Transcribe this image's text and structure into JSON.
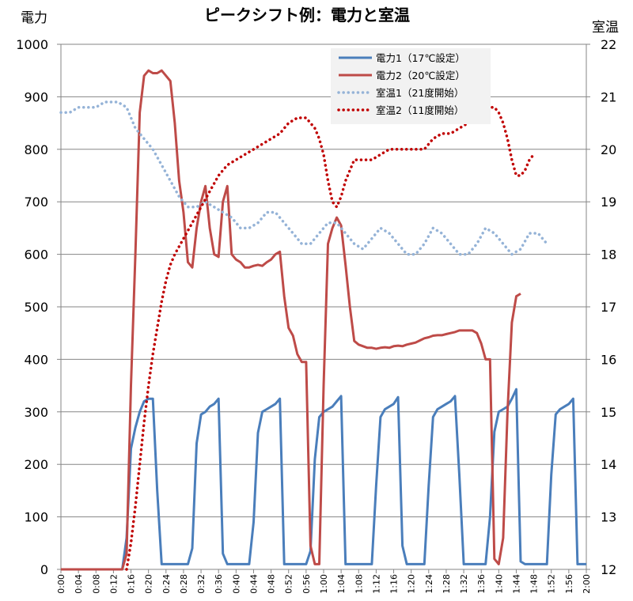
{
  "chart_data": {
    "type": "line",
    "title": "ピークシフト例：電力と室温",
    "ylabel_left": "電力",
    "ylabel_right": "室温",
    "ylim_left": [
      0,
      1000
    ],
    "ylim_right": [
      12,
      22
    ],
    "yticks_left": [
      "0",
      "100",
      "200",
      "300",
      "400",
      "500",
      "600",
      "700",
      "800",
      "900",
      "1000"
    ],
    "yticks_right": [
      "12",
      "13",
      "14",
      "15",
      "16",
      "17",
      "18",
      "19",
      "20",
      "21",
      "22"
    ],
    "grid": "horizontal",
    "legend_position": "top-right",
    "x_range_minutes": [
      0,
      120
    ],
    "xticks": [
      "0:00",
      "0:04",
      "0:08",
      "0:12",
      "0:16",
      "0:20",
      "0:24",
      "0:28",
      "0:32",
      "0:36",
      "0:40",
      "0:44",
      "0:48",
      "0:52",
      "0:56",
      "1:00",
      "1:04",
      "1:08",
      "1:12",
      "1:16",
      "1:20",
      "1:24",
      "1:28",
      "1:32",
      "1:36",
      "1:40",
      "1:44",
      "1:48",
      "1:52",
      "1:56",
      "2:00"
    ],
    "series": [
      {
        "name": "電力1（17℃設定）",
        "axis": "left",
        "color": "#4a7ebb",
        "style": "solid",
        "points": [
          [
            0,
            0
          ],
          [
            14,
            0
          ],
          [
            15,
            60
          ],
          [
            16,
            230
          ],
          [
            17,
            270
          ],
          [
            18,
            300
          ],
          [
            19,
            320
          ],
          [
            20,
            325
          ],
          [
            21,
            325
          ],
          [
            22,
            150
          ],
          [
            23,
            10
          ],
          [
            29,
            10
          ],
          [
            30,
            40
          ],
          [
            31,
            240
          ],
          [
            32,
            295
          ],
          [
            33,
            300
          ],
          [
            34,
            310
          ],
          [
            35,
            315
          ],
          [
            36,
            325
          ],
          [
            37,
            30
          ],
          [
            38,
            10
          ],
          [
            43,
            10
          ],
          [
            44,
            90
          ],
          [
            45,
            260
          ],
          [
            46,
            300
          ],
          [
            47,
            305
          ],
          [
            48,
            310
          ],
          [
            49,
            315
          ],
          [
            50,
            325
          ],
          [
            51,
            10
          ],
          [
            52,
            10
          ],
          [
            56,
            10
          ],
          [
            57,
            35
          ],
          [
            58,
            210
          ],
          [
            59,
            290
          ],
          [
            60,
            300
          ],
          [
            61,
            305
          ],
          [
            62,
            310
          ],
          [
            63,
            320
          ],
          [
            64,
            330
          ],
          [
            65,
            10
          ],
          [
            66,
            10
          ],
          [
            71,
            10
          ],
          [
            72,
            160
          ],
          [
            73,
            290
          ],
          [
            74,
            305
          ],
          [
            75,
            310
          ],
          [
            76,
            315
          ],
          [
            77,
            328
          ],
          [
            78,
            45
          ],
          [
            79,
            10
          ],
          [
            83,
            10
          ],
          [
            84,
            160
          ],
          [
            85,
            290
          ],
          [
            86,
            305
          ],
          [
            87,
            310
          ],
          [
            88,
            315
          ],
          [
            89,
            320
          ],
          [
            90,
            330
          ],
          [
            91,
            180
          ],
          [
            92,
            10
          ],
          [
            97,
            10
          ],
          [
            98,
            100
          ],
          [
            99,
            262
          ],
          [
            100,
            300
          ],
          [
            101,
            305
          ],
          [
            102,
            310
          ],
          [
            103,
            325
          ],
          [
            104,
            343
          ],
          [
            105,
            15
          ],
          [
            106,
            10
          ],
          [
            111,
            10
          ],
          [
            112,
            180
          ],
          [
            113,
            295
          ],
          [
            114,
            305
          ],
          [
            115,
            310
          ],
          [
            116,
            315
          ],
          [
            117,
            325
          ],
          [
            118,
            10
          ],
          [
            120,
            10
          ]
        ]
      },
      {
        "name": "電力2（20℃設定）",
        "axis": "left",
        "color": "#be4b48",
        "style": "solid",
        "points": [
          [
            0,
            0
          ],
          [
            14,
            0
          ],
          [
            15,
            30
          ],
          [
            16,
            350
          ],
          [
            17,
            600
          ],
          [
            18,
            870
          ],
          [
            19,
            940
          ],
          [
            20,
            950
          ],
          [
            21,
            945
          ],
          [
            22,
            945
          ],
          [
            23,
            950
          ],
          [
            24,
            940
          ],
          [
            25,
            930
          ],
          [
            26,
            850
          ],
          [
            27,
            740
          ],
          [
            28,
            680
          ],
          [
            29,
            585
          ],
          [
            30,
            575
          ],
          [
            31,
            650
          ],
          [
            32,
            700
          ],
          [
            33,
            730
          ],
          [
            34,
            650
          ],
          [
            35,
            600
          ],
          [
            36,
            595
          ],
          [
            37,
            700
          ],
          [
            38,
            730
          ],
          [
            39,
            600
          ],
          [
            40,
            590
          ],
          [
            41,
            585
          ],
          [
            42,
            575
          ],
          [
            43,
            575
          ],
          [
            44,
            578
          ],
          [
            45,
            580
          ],
          [
            46,
            578
          ],
          [
            47,
            585
          ],
          [
            48,
            590
          ],
          [
            49,
            600
          ],
          [
            50,
            605
          ],
          [
            51,
            520
          ],
          [
            52,
            460
          ],
          [
            53,
            445
          ],
          [
            54,
            410
          ],
          [
            55,
            395
          ],
          [
            56,
            395
          ],
          [
            57,
            45
          ],
          [
            58,
            10
          ],
          [
            59,
            10
          ],
          [
            60,
            350
          ],
          [
            61,
            620
          ],
          [
            62,
            650
          ],
          [
            63,
            670
          ],
          [
            64,
            655
          ],
          [
            65,
            580
          ],
          [
            66,
            500
          ],
          [
            67,
            435
          ],
          [
            68,
            428
          ],
          [
            69,
            425
          ],
          [
            70,
            422
          ],
          [
            71,
            422
          ],
          [
            72,
            420
          ],
          [
            73,
            422
          ],
          [
            74,
            423
          ],
          [
            75,
            422
          ],
          [
            76,
            425
          ],
          [
            77,
            426
          ],
          [
            78,
            425
          ],
          [
            79,
            428
          ],
          [
            80,
            430
          ],
          [
            81,
            432
          ],
          [
            82,
            436
          ],
          [
            83,
            440
          ],
          [
            84,
            442
          ],
          [
            85,
            445
          ],
          [
            86,
            446
          ],
          [
            87,
            446
          ],
          [
            88,
            448
          ],
          [
            89,
            450
          ],
          [
            90,
            452
          ],
          [
            91,
            455
          ],
          [
            92,
            455
          ],
          [
            93,
            455
          ],
          [
            94,
            455
          ],
          [
            95,
            450
          ],
          [
            96,
            430
          ],
          [
            97,
            400
          ],
          [
            98,
            400
          ],
          [
            99,
            20
          ],
          [
            100,
            10
          ],
          [
            101,
            60
          ],
          [
            102,
            300
          ],
          [
            103,
            470
          ],
          [
            104,
            520
          ],
          [
            105,
            525
          ]
        ]
      },
      {
        "name": "室温1（21度開始）",
        "axis": "right",
        "color": "#95b3d7",
        "style": "dotted",
        "points": [
          [
            0,
            20.7
          ],
          [
            2,
            20.7
          ],
          [
            4,
            20.8
          ],
          [
            8,
            20.8
          ],
          [
            10,
            20.9
          ],
          [
            13,
            20.9
          ],
          [
            15,
            20.8
          ],
          [
            17,
            20.4
          ],
          [
            19,
            20.2
          ],
          [
            21,
            20.0
          ],
          [
            23,
            19.7
          ],
          [
            25,
            19.4
          ],
          [
            27,
            19.1
          ],
          [
            29,
            18.9
          ],
          [
            31,
            18.9
          ],
          [
            33,
            19.0
          ],
          [
            35,
            18.9
          ],
          [
            37,
            18.8
          ],
          [
            39,
            18.7
          ],
          [
            41,
            18.5
          ],
          [
            43,
            18.5
          ],
          [
            45,
            18.6
          ],
          [
            47,
            18.8
          ],
          [
            49,
            18.8
          ],
          [
            51,
            18.6
          ],
          [
            53,
            18.4
          ],
          [
            55,
            18.2
          ],
          [
            57,
            18.2
          ],
          [
            59,
            18.4
          ],
          [
            61,
            18.6
          ],
          [
            63,
            18.6
          ],
          [
            65,
            18.4
          ],
          [
            67,
            18.2
          ],
          [
            69,
            18.1
          ],
          [
            71,
            18.3
          ],
          [
            73,
            18.5
          ],
          [
            75,
            18.4
          ],
          [
            77,
            18.2
          ],
          [
            79,
            18.0
          ],
          [
            81,
            18.0
          ],
          [
            83,
            18.2
          ],
          [
            85,
            18.5
          ],
          [
            87,
            18.4
          ],
          [
            89,
            18.2
          ],
          [
            91,
            18.0
          ],
          [
            93,
            18.0
          ],
          [
            95,
            18.2
          ],
          [
            97,
            18.5
          ],
          [
            99,
            18.4
          ],
          [
            101,
            18.2
          ],
          [
            103,
            18.0
          ],
          [
            105,
            18.1
          ],
          [
            107,
            18.4
          ],
          [
            109,
            18.4
          ],
          [
            111,
            18.2
          ]
        ]
      },
      {
        "name": "室温2（11度開始）",
        "axis": "right",
        "color": "#c00000",
        "style": "dotted",
        "points": [
          [
            15,
            12
          ],
          [
            16,
            12.5
          ],
          [
            17,
            13.2
          ],
          [
            18,
            14.0
          ],
          [
            19,
            14.8
          ],
          [
            20,
            15.5
          ],
          [
            21,
            16.1
          ],
          [
            22,
            16.6
          ],
          [
            23,
            17.1
          ],
          [
            24,
            17.5
          ],
          [
            25,
            17.8
          ],
          [
            26,
            18.0
          ],
          [
            28,
            18.3
          ],
          [
            30,
            18.6
          ],
          [
            32,
            18.9
          ],
          [
            34,
            19.2
          ],
          [
            36,
            19.5
          ],
          [
            38,
            19.7
          ],
          [
            40,
            19.8
          ],
          [
            42,
            19.9
          ],
          [
            44,
            20.0
          ],
          [
            46,
            20.1
          ],
          [
            48,
            20.2
          ],
          [
            50,
            20.3
          ],
          [
            52,
            20.5
          ],
          [
            54,
            20.6
          ],
          [
            56,
            20.6
          ],
          [
            58,
            20.4
          ],
          [
            59,
            20.2
          ],
          [
            60,
            19.9
          ],
          [
            61,
            19.4
          ],
          [
            62,
            19.0
          ],
          [
            63,
            18.9
          ],
          [
            64,
            19.1
          ],
          [
            65,
            19.4
          ],
          [
            66,
            19.6
          ],
          [
            67,
            19.8
          ],
          [
            69,
            19.8
          ],
          [
            71,
            19.8
          ],
          [
            73,
            19.9
          ],
          [
            75,
            20.0
          ],
          [
            77,
            20.0
          ],
          [
            79,
            20.0
          ],
          [
            81,
            20.0
          ],
          [
            83,
            20.0
          ],
          [
            85,
            20.2
          ],
          [
            87,
            20.3
          ],
          [
            89,
            20.3
          ],
          [
            91,
            20.4
          ],
          [
            93,
            20.5
          ],
          [
            95,
            20.6
          ],
          [
            97,
            20.8
          ],
          [
            99,
            20.8
          ],
          [
            100,
            20.7
          ],
          [
            101,
            20.5
          ],
          [
            102,
            20.2
          ],
          [
            103,
            19.8
          ],
          [
            104,
            19.5
          ],
          [
            105,
            19.5
          ],
          [
            106,
            19.6
          ],
          [
            107,
            19.8
          ],
          [
            108,
            19.9
          ]
        ]
      }
    ]
  }
}
